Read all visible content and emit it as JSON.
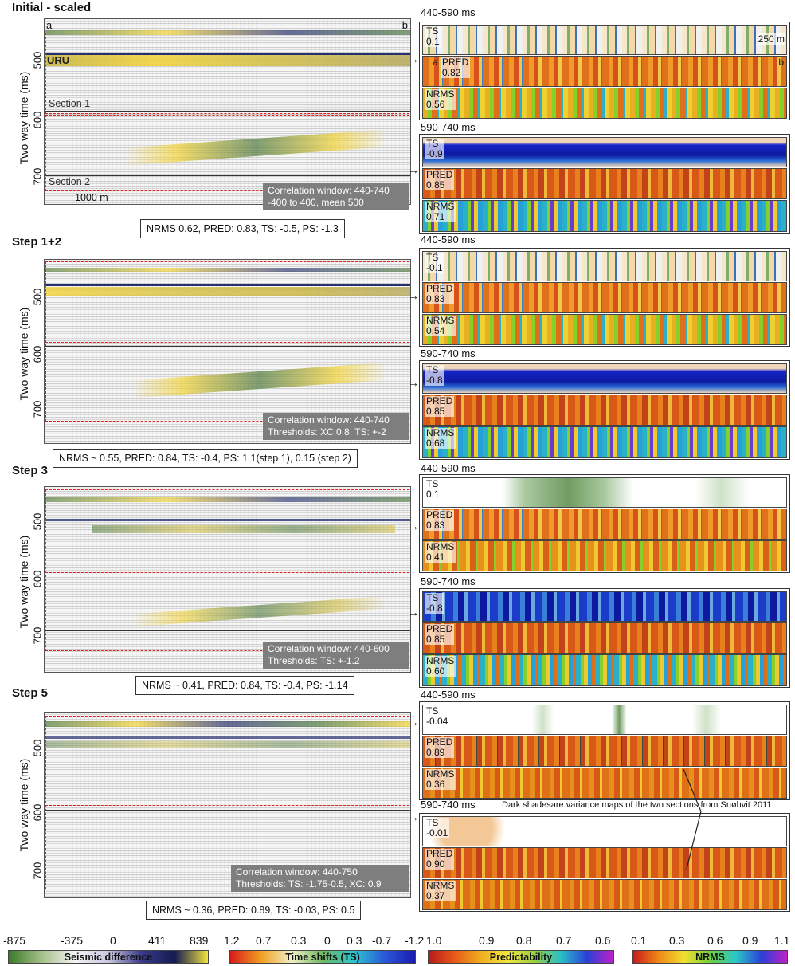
{
  "steps": [
    {
      "title": "Initial - scaled",
      "corr_line1": "Correlation window: 440-740",
      "corr_line2": "-400 to 400, mean 500",
      "summary": "NRMS 0.62, PRED: 0.83, TS: -0.5, PS: -1.3",
      "upper": {
        "window": "440-590 ms",
        "ts": "0.1",
        "pred": "0.82",
        "nrms": "0.56"
      },
      "lower": {
        "window": "590-740 ms",
        "ts": "-0.9",
        "pred": "0.85",
        "nrms": "0.71"
      }
    },
    {
      "title": "Step 1+2",
      "corr_line1": "Correlation window: 440-740",
      "corr_line2": "Thresholds: XC:0.8, TS: +-2",
      "summary": "NRMS ~ 0.55, PRED: 0.84, TS: -0.4, PS: 1.1(step 1), 0.15 (step 2)",
      "upper": {
        "window": "440-590 ms",
        "ts": "-0.1",
        "pred": "0.83",
        "nrms": "0.54"
      },
      "lower": {
        "window": "590-740 ms",
        "ts": "-0.8",
        "pred": "0.85",
        "nrms": "0.68"
      }
    },
    {
      "title": "Step 3",
      "corr_line1": "Correlation window: 440-600",
      "corr_line2": "Thresholds: TS: +-1.2",
      "summary": "NRMS ~ 0.41, PRED: 0.84, TS: -0.4, PS: -1.14",
      "upper": {
        "window": "440-590 ms",
        "ts": "0.1",
        "pred": "0.83",
        "nrms": "0.41"
      },
      "lower": {
        "window": "590-740 ms",
        "ts": "-0.8",
        "pred": "0.85",
        "nrms": "0.60"
      }
    },
    {
      "title": "Step 5",
      "corr_line1": "Correlation window: 440-750",
      "corr_line2": "Thresholds: TS: -1.75-0.5, XC: 0.9",
      "summary": "NRMS ~ 0.36, PRED: 0.89, TS: -0.03, PS: 0.5",
      "upper": {
        "window": "440-590 ms",
        "ts": "-0.04",
        "pred": "0.89",
        "nrms": "0.36"
      },
      "lower": {
        "window": "590-740 ms",
        "ts": "-0.01",
        "pred": "0.90",
        "nrms": "0.37"
      }
    }
  ],
  "labels": {
    "ylabel": "Two way time (ms)",
    "yticks": [
      "500",
      "600",
      "700"
    ],
    "uru": "URU",
    "section1": "Section 1",
    "section2": "Section 2",
    "scale": "1000 m",
    "corner_a": "a",
    "corner_b": "b",
    "scale_250": "250 m",
    "ts": "TS",
    "pred": "PRED",
    "nrms": "NRMS",
    "variance_note": "Dark shadesare variance maps of the two sections from Snøhvit 2011"
  },
  "colorbars": [
    {
      "title": "Seismic difference",
      "ticks": [
        "-875",
        "-375",
        "0",
        "411",
        "839"
      ]
    },
    {
      "title": "Time shifts (TS)",
      "ticks": [
        "1.2",
        "0.7",
        "0.3",
        "0",
        "0.3",
        "-0.7",
        "-1.2"
      ]
    },
    {
      "title": "Predictability",
      "ticks": [
        "1.0",
        "0.9",
        "0.8",
        "0.7",
        "0.6"
      ]
    },
    {
      "title": "NRMS",
      "ticks": [
        "0.1",
        "0.3",
        "0.6",
        "0.9",
        "1.1"
      ]
    }
  ],
  "colors": {
    "dashed_box": "#e02020",
    "seis_yellow": "#f2d234",
    "seis_blue": "#27306f",
    "seis_green": "#4f7a3e",
    "pred_orange": "#e0701a",
    "ts_blue": "#1524c8"
  }
}
